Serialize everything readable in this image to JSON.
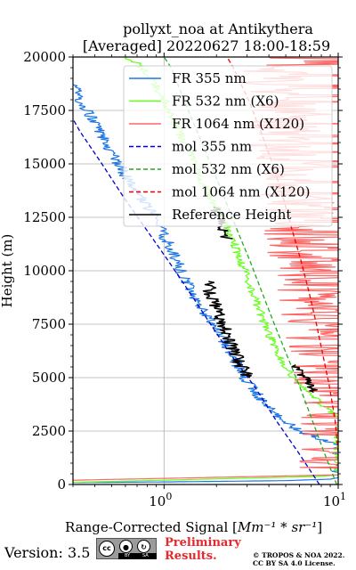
{
  "chart_data": {
    "type": "line",
    "title_line1": "pollyxt_noa at Antikythera",
    "title_line2": "[Averaged] 20220627 18:00-18:59",
    "xlabel": "Range-Corrected Signal [",
    "xlabel_math": "Mm⁻¹ * sr⁻¹",
    "xlabel_end": "]",
    "ylabel": "Height (m)",
    "xscale": "log",
    "xlim": [
      0.3,
      10
    ],
    "ylim": [
      0,
      20000
    ],
    "x_tick_labels": [
      {
        "value": 1,
        "base": "10",
        "exp": "0"
      },
      {
        "value": 10,
        "base": "10",
        "exp": "1"
      }
    ],
    "y_ticks": [
      0,
      2500,
      5000,
      7500,
      10000,
      12500,
      15000,
      17500,
      20000
    ],
    "y_tick_labels": [
      "0",
      "2500",
      "5000",
      "7500",
      "10000",
      "12500",
      "15000",
      "17500",
      "20000"
    ],
    "grid": true,
    "legend_position": "top-right",
    "series": [
      {
        "name": "FR 355 nm",
        "style": "solid",
        "color": "#1f77e4",
        "noise": 0.035,
        "points": [
          [
            0.3,
            90
          ],
          [
            1,
            120
          ],
          [
            5,
            180
          ],
          [
            9,
            250
          ],
          [
            10,
            320
          ],
          [
            10,
            1800
          ],
          [
            6,
            2500
          ],
          [
            4.3,
            3300
          ],
          [
            3.5,
            4100
          ],
          [
            3.1,
            4700
          ],
          [
            2.8,
            5200
          ],
          [
            2.5,
            6000
          ],
          [
            2.1,
            7000
          ],
          [
            1.7,
            8000
          ],
          [
            1.45,
            9000
          ],
          [
            1.25,
            10000
          ],
          [
            1.1,
            11000
          ],
          [
            0.95,
            12000
          ],
          [
            0.8,
            13000
          ],
          [
            0.65,
            14000
          ],
          [
            0.55,
            15000
          ],
          [
            0.5,
            15500
          ],
          [
            0.45,
            16200
          ],
          [
            0.38,
            17200
          ],
          [
            0.33,
            18000
          ],
          [
            0.3,
            18700
          ]
        ]
      },
      {
        "name": "FR 532 nm (X6)",
        "style": "solid",
        "color": "#66ff1a",
        "noise": 0.025,
        "points": [
          [
            0.3,
            100
          ],
          [
            8,
            380
          ],
          [
            10,
            450
          ],
          [
            10,
            3100
          ],
          [
            7,
            4200
          ],
          [
            5.5,
            5000
          ],
          [
            4.6,
            6000
          ],
          [
            4,
            7000
          ],
          [
            3.4,
            8500
          ],
          [
            2.9,
            10000
          ],
          [
            2.6,
            11000
          ],
          [
            2.3,
            12000
          ],
          [
            2,
            13000
          ],
          [
            1.7,
            14000
          ],
          [
            1.5,
            15000
          ],
          [
            1.3,
            16000
          ],
          [
            1.15,
            17000
          ],
          [
            1,
            18000
          ],
          [
            0.85,
            19000
          ],
          [
            0.7,
            19700
          ],
          [
            0.6,
            20000
          ]
        ]
      },
      {
        "name": "FR 1064 nm (X120)",
        "style": "solid",
        "color": "#ff6666",
        "noise": 0.22,
        "points": [
          [
            0.3,
            200
          ],
          [
            10,
            450
          ],
          [
            10,
            2500
          ],
          [
            9,
            5000
          ],
          [
            8,
            7000
          ],
          [
            7,
            9000
          ],
          [
            6.5,
            11000
          ],
          [
            6,
            12500
          ],
          [
            5.5,
            14000
          ],
          [
            5,
            16000
          ],
          [
            4.5,
            18000
          ],
          [
            4,
            20000
          ]
        ]
      },
      {
        "name": "mol 355 nm",
        "style": "dashed",
        "color": "#0000cc",
        "points": [
          [
            7.8,
            0
          ],
          [
            5.9,
            1500
          ],
          [
            4.4,
            3000
          ],
          [
            3.3,
            4600
          ],
          [
            2.45,
            6000
          ],
          [
            1.85,
            7500
          ],
          [
            1.4,
            9000
          ],
          [
            1.05,
            10500
          ],
          [
            0.78,
            12000
          ],
          [
            0.58,
            13500
          ],
          [
            0.44,
            15000
          ],
          [
            0.33,
            16500
          ],
          [
            0.3,
            17100
          ]
        ]
      },
      {
        "name": "mol 532 nm (X6)",
        "style": "dashed",
        "color": "#22aa22",
        "points": [
          [
            9.8,
            0
          ],
          [
            8.3,
            1500
          ],
          [
            7.1,
            3000
          ],
          [
            6,
            4600
          ],
          [
            5.1,
            6000
          ],
          [
            4.3,
            7500
          ],
          [
            3.65,
            9000
          ],
          [
            3.1,
            10500
          ],
          [
            2.6,
            12000
          ],
          [
            2.2,
            13500
          ],
          [
            1.85,
            15000
          ],
          [
            1.55,
            16500
          ],
          [
            1.3,
            18000
          ],
          [
            1.1,
            19500
          ],
          [
            1.0,
            20000
          ]
        ]
      },
      {
        "name": "mol 1064 nm (X120)",
        "style": "dashed",
        "color": "#ee0000",
        "points": [
          [
            10,
            1500
          ],
          [
            9.6,
            3000
          ],
          [
            8.9,
            4600
          ],
          [
            8.2,
            6000
          ],
          [
            7.5,
            7500
          ],
          [
            6.8,
            9000
          ],
          [
            6.1,
            10500
          ],
          [
            5.4,
            12000
          ],
          [
            4.8,
            13500
          ],
          [
            4.2,
            15000
          ],
          [
            3.6,
            16500
          ],
          [
            3.05,
            18000
          ],
          [
            2.5,
            19500
          ],
          [
            2.3,
            20000
          ]
        ]
      },
      {
        "name": "Reference Height",
        "style": "solid",
        "color": "#000000",
        "noise": 0.04,
        "points": [
          [
            3,
            5000
          ],
          [
            2.6,
            6000
          ],
          [
            2.3,
            7000
          ],
          [
            2.05,
            8000
          ],
          [
            1.85,
            9000
          ],
          [
            1.8,
            9500
          ]
        ]
      },
      {
        "name": "",
        "style": "solid",
        "color": "#000000",
        "noise": 0.035,
        "legend": false,
        "points": [
          [
            2.3,
            11500
          ],
          [
            2.1,
            12500
          ],
          [
            1.95,
            13000
          ]
        ]
      },
      {
        "name": "",
        "style": "solid",
        "color": "#000000",
        "noise": 0.03,
        "legend": false,
        "points": [
          [
            7.3,
            4300
          ],
          [
            6.4,
            5000
          ],
          [
            5.7,
            5600
          ]
        ]
      }
    ]
  },
  "footer": {
    "version_label": "Version: 3.5",
    "cc_by": "BY",
    "cc_sa": "SA",
    "preliminary_line1": "Preliminary",
    "preliminary_line2": "Results.",
    "copyright_line1": "© TROPOS & NOA 2022.",
    "copyright_line2": "CC BY SA 4.0 License."
  }
}
